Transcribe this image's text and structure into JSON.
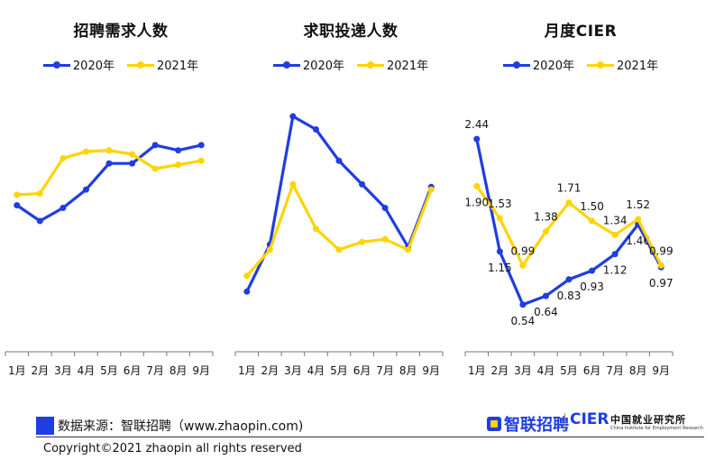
{
  "colors": {
    "series_2020": "#1f3de0",
    "series_2021": "#ffd400"
  },
  "chart_data": [
    {
      "type": "line",
      "title": "招聘需求人数",
      "categories": [
        "1月",
        "2月",
        "3月",
        "4月",
        "5月",
        "6月",
        "7月",
        "8月",
        "9月"
      ],
      "series": [
        {
          "name": "2020年",
          "values": [
            56,
            50,
            55,
            62,
            72,
            72,
            79,
            77,
            79
          ]
        },
        {
          "name": "2021年",
          "values": [
            60,
            60.5,
            74,
            76.5,
            77,
            75.5,
            70,
            71.5,
            73
          ]
        }
      ],
      "ylim": [
        0,
        100
      ],
      "grid": false,
      "legend": "top"
    },
    {
      "type": "line",
      "title": "求职投递人数",
      "categories": [
        "1月",
        "2月",
        "3月",
        "4月",
        "5月",
        "6月",
        "7月",
        "8月",
        "9月"
      ],
      "series": [
        {
          "name": "2020年",
          "values": [
            23,
            41,
            90,
            85,
            73,
            64,
            55,
            40,
            63
          ]
        },
        {
          "name": "2021年",
          "values": [
            29,
            39,
            64,
            47,
            39,
            42,
            43,
            39,
            62
          ]
        }
      ],
      "ylim": [
        0,
        100
      ],
      "grid": false,
      "legend": "top"
    },
    {
      "type": "line",
      "title": "月度CIER",
      "categories": [
        "1月",
        "2月",
        "3月",
        "4月",
        "5月",
        "6月",
        "7月",
        "8月",
        "9月"
      ],
      "series": [
        {
          "name": "2020年",
          "values": [
            2.44,
            1.15,
            0.54,
            0.64,
            0.83,
            0.93,
            1.12,
            1.46,
            0.97
          ]
        },
        {
          "name": "2021年",
          "values": [
            1.9,
            1.53,
            0.99,
            1.38,
            1.71,
            1.5,
            1.34,
            1.52,
            0.99
          ]
        }
      ],
      "ylim": [
        0,
        3
      ],
      "grid": false,
      "legend": "top",
      "data_labels": true
    }
  ],
  "footer": {
    "source": "数据来源：智联招聘（www.zhaopin.com)",
    "copyright": "Copyright©2021 zhaopin all rights reserved"
  },
  "logos": {
    "zhaopin": "智联招聘",
    "cier": "CIER",
    "cier_zh": "中国就业研究所",
    "cier_en": "China Institute for Employment Research"
  }
}
